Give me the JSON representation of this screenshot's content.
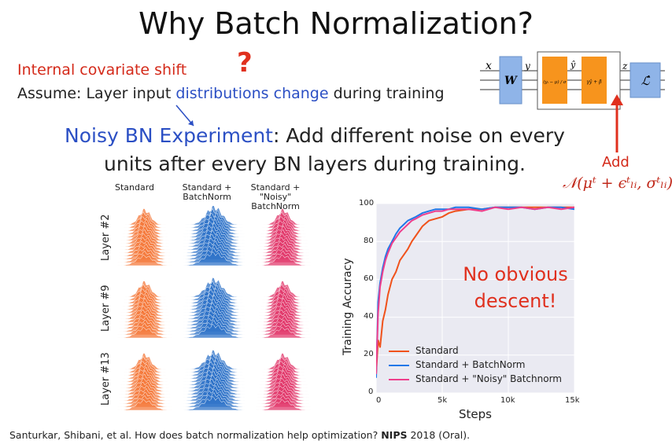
{
  "slide": {
    "title": "Why Batch Normalization?",
    "concept": "Internal covariate shift",
    "question_mark": "?",
    "assume": {
      "prefix": "Assume: Layer input ",
      "highlight": "distributions change",
      "suffix": " during training"
    },
    "noisy": {
      "highlight": "Noisy BN Experiment",
      "line1": ": Add different noise on every",
      "line2": "units after every BN layers during training."
    },
    "add_label": "Add",
    "noise_formula": "𝒩(μᵗ + ϵᵗₗᵢ, σᵗₗᵢ)",
    "citation_prefix": "Santurkar, Shibani, et al. How does batch normalization help optimization? ",
    "citation_venue": "NIPS",
    "citation_suffix": " 2018 (Oral).",
    "diagram": {
      "x": "x",
      "W": "W",
      "y": "y",
      "yhat": "ŷ",
      "norm": "(yᵢ − μ) / σ",
      "affine": "γŷ + β",
      "z": "z",
      "loss": "ℒ̂"
    },
    "grid": {
      "columns": [
        "Standard",
        "Standard + BatchNorm",
        "Standard + \"Noisy\" BatchNorm"
      ],
      "rows": [
        "Layer #2",
        "Layer #9",
        "Layer #13"
      ],
      "colors": [
        "#f47a3c",
        "#2f73c8",
        "#e23a6c"
      ]
    },
    "annotation": {
      "line1": "No obvious",
      "line2": "descent!"
    }
  },
  "chart_data": {
    "type": "line",
    "xlabel": "Steps",
    "ylabel": "Training Accuracy",
    "xlim": [
      0,
      15000
    ],
    "ylim": [
      0,
      100
    ],
    "xticks": [
      0,
      5000,
      10000,
      15000
    ],
    "xtick_labels": [
      "0",
      "5k",
      "10k",
      "15k"
    ],
    "yticks": [
      0,
      20,
      40,
      60,
      80,
      100
    ],
    "grid": true,
    "legend_position": "bottom-center",
    "series": [
      {
        "name": "Standard",
        "color": "#f0521b",
        "x": [
          0,
          150,
          300,
          500,
          700,
          900,
          1200,
          1500,
          1800,
          2100,
          2400,
          2700,
          3000,
          3500,
          4000,
          4500,
          5000,
          5500,
          6000,
          7000,
          8000,
          9000,
          10000,
          11000,
          12000,
          13000,
          14000,
          15000
        ],
        "y": [
          10,
          28,
          24,
          38,
          44,
          52,
          60,
          64,
          70,
          73,
          76,
          80,
          83,
          88,
          91,
          92,
          93,
          95,
          96,
          97,
          97,
          98,
          98,
          98,
          98,
          98,
          98,
          98
        ]
      },
      {
        "name": "Standard + BatchNorm",
        "color": "#1f77e8",
        "x": [
          0,
          150,
          300,
          500,
          700,
          900,
          1200,
          1500,
          1800,
          2100,
          2400,
          2700,
          3000,
          3500,
          4000,
          4500,
          5000,
          5500,
          6000,
          7000,
          8000,
          9000,
          10000,
          11000,
          12000,
          13000,
          14000,
          15000
        ],
        "y": [
          8,
          48,
          58,
          66,
          72,
          76,
          80,
          84,
          87,
          89,
          91,
          92,
          93,
          95,
          96,
          97,
          97,
          97,
          98,
          98,
          97,
          98,
          98,
          98,
          97,
          98,
          98,
          97
        ]
      },
      {
        "name": "Standard + \"Noisy\" Batchnorm",
        "color": "#ee3e8c",
        "x": [
          0,
          150,
          300,
          500,
          700,
          900,
          1200,
          1500,
          1800,
          2100,
          2400,
          2700,
          3000,
          3500,
          4000,
          4500,
          5000,
          5500,
          6000,
          7000,
          8000,
          9000,
          10000,
          11000,
          12000,
          13000,
          14000,
          15000
        ],
        "y": [
          10,
          42,
          56,
          64,
          70,
          74,
          79,
          82,
          85,
          87,
          89,
          91,
          92,
          94,
          95,
          96,
          96,
          97,
          97,
          97,
          96,
          98,
          97,
          98,
          97,
          98,
          97,
          98
        ]
      }
    ]
  }
}
